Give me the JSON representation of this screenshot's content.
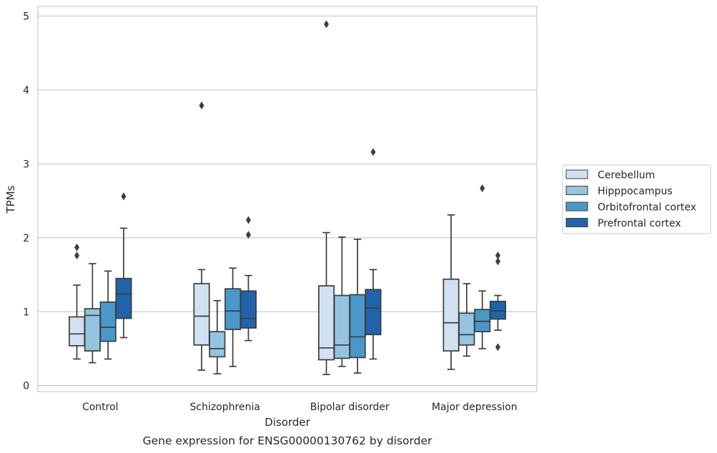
{
  "chart_data": {
    "type": "box",
    "title": "",
    "caption": "Gene expression for ENSG00000130762 by disorder",
    "xlabel": "Disorder",
    "ylabel": "TPMs",
    "ylim": [
      -0.08,
      5.13
    ],
    "yticks": [
      0,
      1,
      2,
      3,
      4,
      5
    ],
    "grid": true,
    "legend_position": "right",
    "categories": [
      "Control",
      "Schizophrenia",
      "Bipolar disorder",
      "Major depression"
    ],
    "series": [
      {
        "name": "Cerebellum",
        "color": "#d0e1f2",
        "boxes": [
          {
            "whislo": 0.36,
            "q1": 0.54,
            "med": 0.7,
            "q3": 0.93,
            "whishi": 1.36,
            "fliers": [
              1.76,
              1.87
            ]
          },
          {
            "whislo": 0.21,
            "q1": 0.55,
            "med": 0.94,
            "q3": 1.38,
            "whishi": 1.57,
            "fliers": [
              3.79
            ]
          },
          {
            "whislo": 0.15,
            "q1": 0.35,
            "med": 0.51,
            "q3": 1.35,
            "whishi": 2.07,
            "fliers": [
              4.89
            ]
          },
          {
            "whislo": 0.22,
            "q1": 0.47,
            "med": 0.85,
            "q3": 1.44,
            "whishi": 2.31,
            "fliers": []
          }
        ]
      },
      {
        "name": "Hipppocampus",
        "color": "#94c4df",
        "boxes": [
          {
            "whislo": 0.31,
            "q1": 0.47,
            "med": 0.95,
            "q3": 1.04,
            "whishi": 1.65,
            "fliers": []
          },
          {
            "whislo": 0.16,
            "q1": 0.39,
            "med": 0.5,
            "q3": 0.73,
            "whishi": 1.15,
            "fliers": []
          },
          {
            "whislo": 0.26,
            "q1": 0.37,
            "med": 0.55,
            "q3": 1.22,
            "whishi": 2.01,
            "fliers": []
          },
          {
            "whislo": 0.4,
            "q1": 0.55,
            "med": 0.69,
            "q3": 0.98,
            "whishi": 1.38,
            "fliers": []
          }
        ]
      },
      {
        "name": "Orbitofrontal cortex",
        "color": "#4a98c9",
        "boxes": [
          {
            "whislo": 0.36,
            "q1": 0.6,
            "med": 0.79,
            "q3": 1.13,
            "whishi": 1.55,
            "fliers": []
          },
          {
            "whislo": 0.26,
            "q1": 0.76,
            "med": 1.01,
            "q3": 1.31,
            "whishi": 1.59,
            "fliers": []
          },
          {
            "whislo": 0.17,
            "q1": 0.38,
            "med": 0.66,
            "q3": 1.23,
            "whishi": 1.98,
            "fliers": []
          },
          {
            "whislo": 0.5,
            "q1": 0.73,
            "med": 0.87,
            "q3": 1.03,
            "whishi": 1.28,
            "fliers": [
              2.67
            ]
          }
        ]
      },
      {
        "name": "Prefrontal cortex",
        "color": "#2163aa",
        "boxes": [
          {
            "whislo": 0.65,
            "q1": 0.91,
            "med": 1.24,
            "q3": 1.45,
            "whishi": 2.13,
            "fliers": [
              2.56
            ]
          },
          {
            "whislo": 0.61,
            "q1": 0.78,
            "med": 0.91,
            "q3": 1.28,
            "whishi": 1.49,
            "fliers": [
              2.04,
              2.24
            ]
          },
          {
            "whislo": 0.36,
            "q1": 0.69,
            "med": 1.05,
            "q3": 1.3,
            "whishi": 1.57,
            "fliers": [
              3.16
            ]
          },
          {
            "whislo": 0.75,
            "q1": 0.9,
            "med": 1.01,
            "q3": 1.14,
            "whishi": 1.22,
            "fliers": [
              0.52,
              1.68,
              1.76
            ]
          }
        ]
      }
    ]
  }
}
